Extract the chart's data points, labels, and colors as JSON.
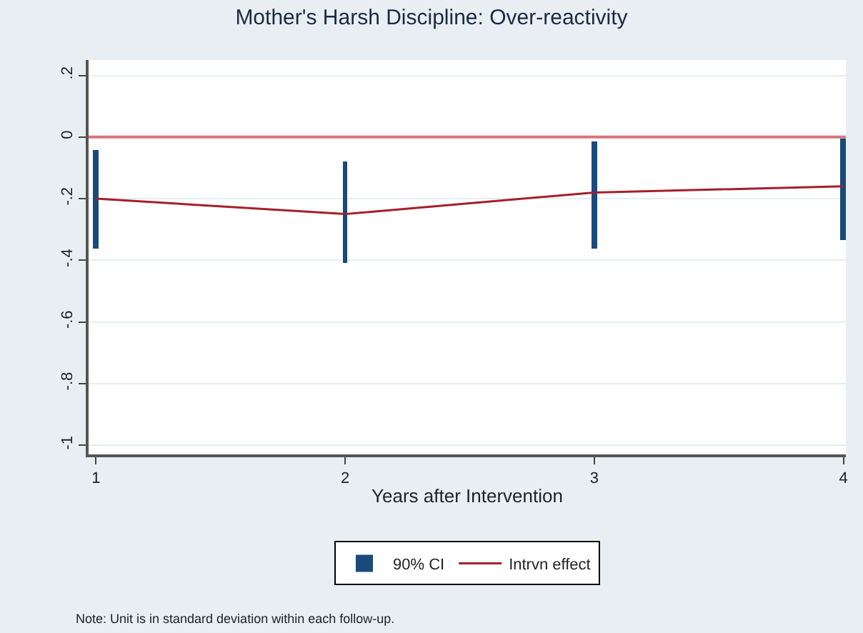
{
  "chart_data": {
    "type": "line",
    "title": "Mother's Harsh Discipline: Over-reactivity",
    "xlabel": "Years after Intervention",
    "x": [
      1,
      2,
      3,
      4
    ],
    "series": [
      {
        "name": "90% CI",
        "type": "bar",
        "color": "#1a4a7a",
        "base": [
          -0.36,
          -0.41,
          -0.36,
          -0.335
        ],
        "values": [
          0.32,
          0.33,
          0.345,
          0.33
        ]
      },
      {
        "name": "Intrvn effect",
        "color": "#a3202a",
        "values": [
          -0.2,
          -0.25,
          -0.18,
          -0.16
        ]
      }
    ],
    "ref_lines": [
      {
        "axis": "y",
        "value": 0,
        "color": "#d9737c"
      }
    ],
    "xlim": [
      0.97,
      4.01
    ],
    "xticks": [
      1,
      2,
      3,
      4
    ],
    "ylim": [
      -1.03,
      0.25
    ],
    "yticks": [
      {
        "value": 0.2,
        "label": ".2"
      },
      0,
      {
        "value": -0.2,
        "label": "-.2"
      },
      {
        "value": -0.4,
        "label": "-.4"
      },
      {
        "value": -0.6,
        "label": "-.6"
      },
      {
        "value": -0.8,
        "label": "-.8"
      },
      -1
    ],
    "grid": "y",
    "legend": "bottom",
    "annotations": [
      "Note: Unit is in standard deviation within each follow-up."
    ]
  }
}
